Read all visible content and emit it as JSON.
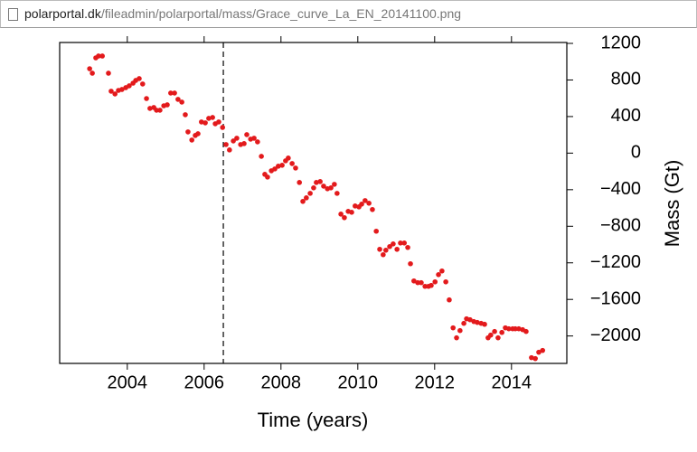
{
  "address_bar": {
    "host": "polarportal.dk",
    "path": "/fileadmin/polarportal/mass/Grace_curve_La_EN_20141100.png"
  },
  "chart_data": {
    "type": "scatter",
    "xlabel": "Time (years)",
    "ylabel": "Mass (Gt)",
    "color": "#e31a1c",
    "xlim": [
      2002.24,
      2015.44
    ],
    "ylim": [
      -2300,
      1210
    ],
    "xticks": [
      2004,
      2006,
      2008,
      2010,
      2012,
      2014
    ],
    "yticks": [
      {
        "value": -2000,
        "label": "−2000"
      },
      {
        "value": -1600,
        "label": "−1600"
      },
      {
        "value": -1200,
        "label": "−1200"
      },
      {
        "value": -800,
        "label": "−800"
      },
      {
        "value": -400,
        "label": "−400"
      },
      0,
      400,
      800,
      1200
    ],
    "vline": 2006.5,
    "x": [
      2003.02,
      2003.09,
      2003.18,
      2003.25,
      2003.35,
      2003.51,
      2003.58,
      2003.68,
      2003.77,
      2003.86,
      2003.96,
      2004.05,
      2004.15,
      2004.22,
      2004.31,
      2004.4,
      2004.5,
      2004.59,
      2004.69,
      2004.76,
      2004.85,
      2004.95,
      2005.04,
      2005.13,
      2005.23,
      2005.32,
      2005.42,
      2005.51,
      2005.58,
      2005.68,
      2005.77,
      2005.84,
      2005.93,
      2006.03,
      2006.12,
      2006.22,
      2006.29,
      2006.38,
      2006.48,
      2006.57,
      2006.66,
      2006.76,
      2006.85,
      2006.95,
      2007.04,
      2007.11,
      2007.21,
      2007.3,
      2007.39,
      2007.49,
      2007.58,
      2007.65,
      2007.75,
      2007.84,
      2007.93,
      2008.03,
      2008.12,
      2008.19,
      2008.29,
      2008.38,
      2008.48,
      2008.57,
      2008.66,
      2008.76,
      2008.85,
      2008.92,
      2009.02,
      2009.11,
      2009.21,
      2009.3,
      2009.39,
      2009.46,
      2009.56,
      2009.65,
      2009.75,
      2009.84,
      2009.93,
      2010.03,
      2010.1,
      2010.19,
      2010.29,
      2010.38,
      2010.48,
      2010.57,
      2010.66,
      2010.73,
      2010.83,
      2010.92,
      2011.02,
      2011.11,
      2011.21,
      2011.3,
      2011.37,
      2011.46,
      2011.56,
      2011.65,
      2011.75,
      2011.84,
      2011.91,
      2012.01,
      2012.1,
      2012.19,
      2012.29,
      2012.38,
      2012.48,
      2012.57,
      2012.66,
      2012.76,
      2012.83,
      2012.92,
      2013.02,
      2013.11,
      2013.21,
      2013.3,
      2013.39,
      2013.46,
      2013.56,
      2013.65,
      2013.75,
      2013.84,
      2013.93,
      2014.03,
      2014.1,
      2014.19,
      2014.29,
      2014.38,
      2014.52,
      2014.62,
      2014.71,
      2014.81
    ],
    "values": [
      923,
      874,
      1042,
      1062,
      1062,
      874,
      677,
      647,
      686,
      696,
      716,
      736,
      765,
      795,
      815,
      756,
      597,
      489,
      499,
      469,
      469,
      518,
      528,
      657,
      657,
      588,
      558,
      420,
      232,
      143,
      193,
      212,
      341,
      331,
      380,
      390,
      321,
      341,
      281,
      94,
      35,
      133,
      163,
      94,
      104,
      202,
      153,
      163,
      123,
      -35,
      -232,
      -262,
      -193,
      -173,
      -143,
      -133,
      -84,
      -54,
      -114,
      -163,
      -321,
      -528,
      -489,
      -440,
      -380,
      -321,
      -311,
      -361,
      -390,
      -380,
      -341,
      -440,
      -667,
      -706,
      -637,
      -647,
      -578,
      -588,
      -558,
      -519,
      -548,
      -617,
      -854,
      -1052,
      -1111,
      -1062,
      -1022,
      -993,
      -1052,
      -983,
      -983,
      -1032,
      -1210,
      -1398,
      -1417,
      -1417,
      -1457,
      -1457,
      -1447,
      -1408,
      -1329,
      -1289,
      -1408,
      -1605,
      -1911,
      -2020,
      -1941,
      -1862,
      -1812,
      -1822,
      -1842,
      -1852,
      -1862,
      -1872,
      -2020,
      -1990,
      -1951,
      -2020,
      -1961,
      -1911,
      -1921,
      -1921,
      -1921,
      -1921,
      -1931,
      -1951,
      -2237,
      -2247,
      -2178,
      -2158
    ]
  }
}
